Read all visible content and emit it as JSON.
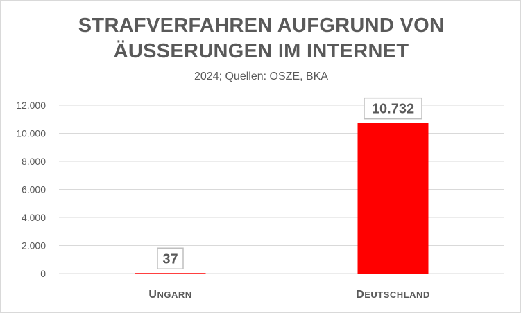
{
  "chart_data": {
    "type": "bar",
    "title_lines": [
      "STRAFVERFAHREN AUFGRUND VON",
      "ÄUSSERUNGEN IM INTERNET"
    ],
    "subtitle": "2024; Quellen: OSZE, BKA",
    "categories": [
      "Ungarn",
      "Deutschland"
    ],
    "values": [
      37,
      10732
    ],
    "value_labels": [
      "37",
      "10.732"
    ],
    "bar_colors": [
      "#ff0000",
      "#ff0000"
    ],
    "ylim": [
      0,
      12000
    ],
    "yticks": [
      0,
      2000,
      4000,
      6000,
      8000,
      10000,
      12000
    ],
    "ytick_labels": [
      "0",
      "2.000",
      "4.000",
      "6.000",
      "8.000",
      "10.000",
      "12.000"
    ],
    "grid": true,
    "xlabel": "",
    "ylabel": ""
  },
  "colors": {
    "bar": "#ff0000",
    "text": "#595959",
    "grid": "#d9d9d9"
  }
}
